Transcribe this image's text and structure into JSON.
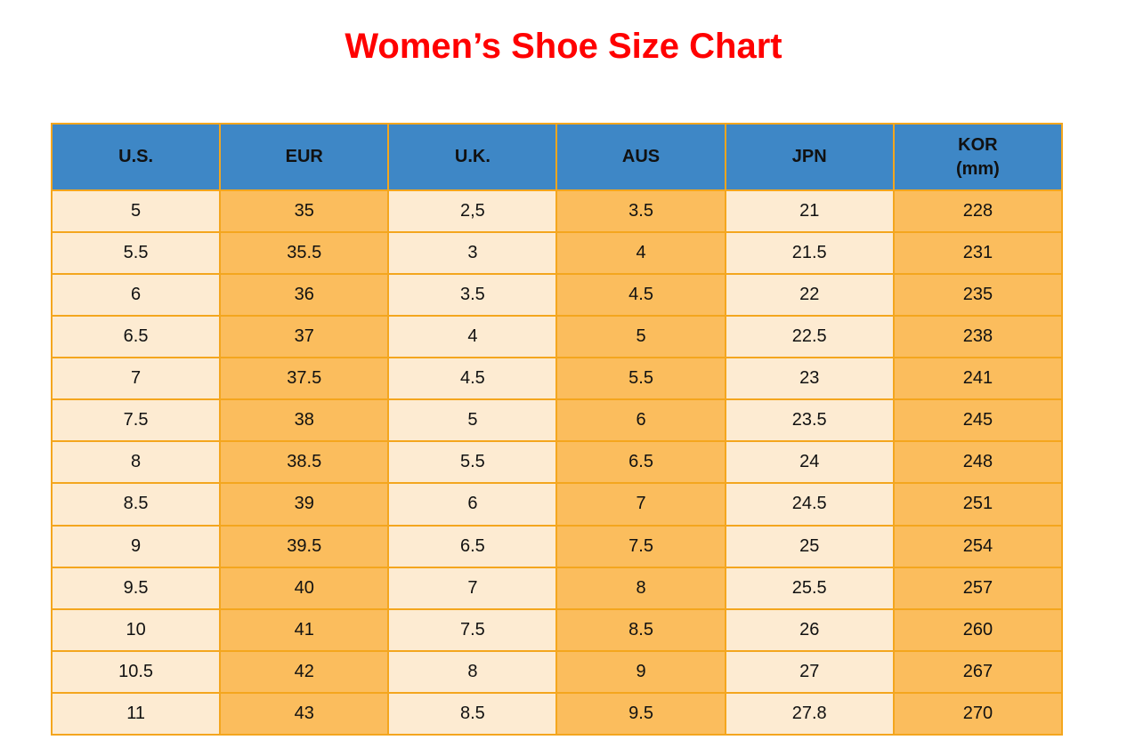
{
  "page": {
    "title": "Women’s Shoe Size Chart"
  },
  "colors": {
    "title-red": "#ff0000",
    "header-blue": "#3e87c6",
    "cell-cream": "#fdebd2",
    "cell-orange": "#fbbd5d",
    "border-orange": "#f4a61e",
    "text-black": "#111111"
  },
  "table": {
    "headers": [
      {
        "label": "U.S."
      },
      {
        "label": "EUR"
      },
      {
        "label": "U.K."
      },
      {
        "label": "AUS"
      },
      {
        "label": "JPN"
      },
      {
        "label": "KOR",
        "sublabel": "(mm)"
      }
    ],
    "rows": [
      [
        "5",
        "35",
        "2,5",
        "3.5",
        "21",
        "228"
      ],
      [
        "5.5",
        "35.5",
        "3",
        "4",
        "21.5",
        "231"
      ],
      [
        "6",
        "36",
        "3.5",
        "4.5",
        "22",
        "235"
      ],
      [
        "6.5",
        "37",
        "4",
        "5",
        "22.5",
        "238"
      ],
      [
        "7",
        "37.5",
        "4.5",
        "5.5",
        "23",
        "241"
      ],
      [
        "7.5",
        "38",
        "5",
        "6",
        "23.5",
        "245"
      ],
      [
        "8",
        "38.5",
        "5.5",
        "6.5",
        "24",
        "248"
      ],
      [
        "8.5",
        "39",
        "6",
        "7",
        "24.5",
        "251"
      ],
      [
        "9",
        "39.5",
        "6.5",
        "7.5",
        "25",
        "254"
      ],
      [
        "9.5",
        "40",
        "7",
        "8",
        "25.5",
        "257"
      ],
      [
        "10",
        "41",
        "7.5",
        "8.5",
        "26",
        "260"
      ],
      [
        "10.5",
        "42",
        "8",
        "9",
        "27",
        "267"
      ],
      [
        "11",
        "43",
        "8.5",
        "9.5",
        "27.8",
        "270"
      ]
    ]
  }
}
